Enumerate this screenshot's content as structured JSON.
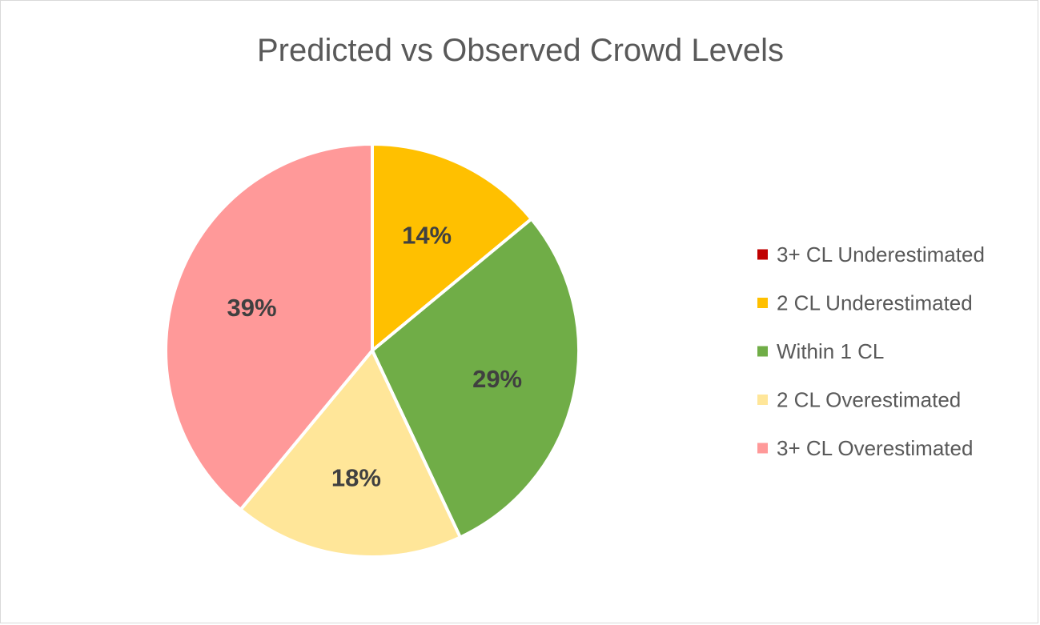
{
  "chart_data": {
    "type": "pie",
    "title": "Predicted vs Observed Crowd Levels",
    "categories": [
      "3+ CL Underestimated",
      "2 CL Underestimated",
      "Within 1 CL",
      "2 CL Overestimated",
      "3+ CL Overestimated"
    ],
    "values": [
      0,
      14,
      29,
      18,
      39
    ],
    "labels": [
      "",
      "14%",
      "29%",
      "18%",
      "39%"
    ],
    "colors": [
      "#c00000",
      "#ffc000",
      "#70ad47",
      "#ffe699",
      "#ff9999"
    ],
    "legend_position": "right",
    "start_angle_deg": 0,
    "direction": "clockwise"
  }
}
